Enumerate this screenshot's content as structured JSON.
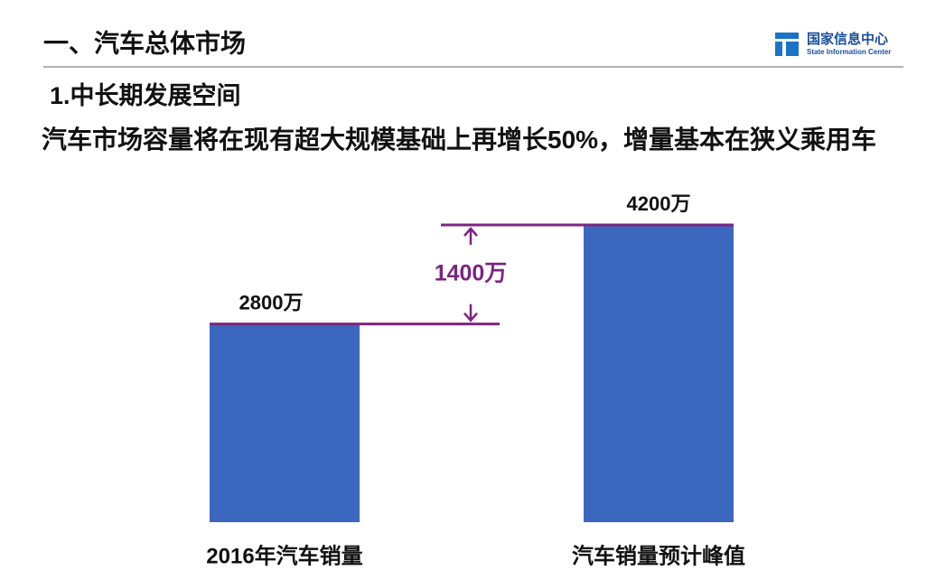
{
  "header": {
    "title": "一、汽车总体市场",
    "logo_name": "国家信息中心",
    "logo_subtitle": "State Information Center"
  },
  "section_title": "1.中长期发展空间",
  "headline": "汽车市场容量将在现有超大规模基础上再增长50%，增量基本在狭义乘用车",
  "chart_data": {
    "type": "bar",
    "categories": [
      "2016年汽车销量",
      "汽车销量预计峰值"
    ],
    "values": [
      2800,
      4200
    ],
    "value_labels": [
      "2800万",
      "4200万"
    ],
    "color": "#3c67be",
    "annotation": "1400万"
  }
}
